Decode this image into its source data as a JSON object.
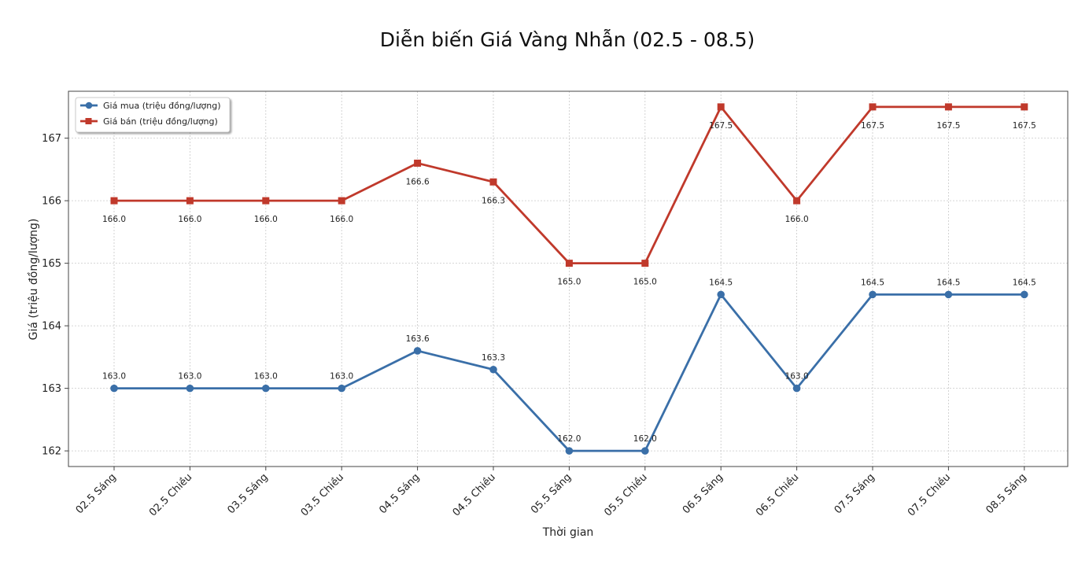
{
  "chart_data": {
    "type": "line",
    "title": "Diễn biến Giá Vàng Nhẫn (02.5 - 08.5)",
    "xlabel": "Thời gian",
    "ylabel": "Giá (triệu đồng/lượng)",
    "categories": [
      "02.5 Sáng",
      "02.5 Chiều",
      "03.5 Sáng",
      "03.5 Chiều",
      "04.5 Sáng",
      "04.5 Chiều",
      "05.5 Sáng",
      "05.5 Chiều",
      "06.5 Sáng",
      "06.5 Chiều",
      "07.5 Sáng",
      "07.5 Chiều",
      "08.5 Sáng"
    ],
    "ylim": [
      161.75,
      167.75
    ],
    "yticks": [
      162,
      163,
      164,
      165,
      166,
      167
    ],
    "grid": true,
    "legend_position": "top-left",
    "series": [
      {
        "name": "Giá mua (triệu đồng/lượng)",
        "color": "#3a6fa8",
        "marker": "circle",
        "label_position": "above",
        "values": [
          163.0,
          163.0,
          163.0,
          163.0,
          163.6,
          163.3,
          162.0,
          162.0,
          164.5,
          163.0,
          164.5,
          164.5,
          164.5
        ],
        "labels": [
          "163.0",
          "163.0",
          "163.0",
          "163.0",
          "163.6",
          "163.3",
          "162.0",
          "162.0",
          "164.5",
          "163.0",
          "164.5",
          "164.5",
          "164.5"
        ]
      },
      {
        "name": "Giá bán (triệu đồng/lượng)",
        "color": "#c0392b",
        "marker": "square",
        "label_position": "below",
        "values": [
          166.0,
          166.0,
          166.0,
          166.0,
          166.6,
          166.3,
          165.0,
          165.0,
          167.5,
          166.0,
          167.5,
          167.5,
          167.5
        ],
        "labels": [
          "166.0",
          "166.0",
          "166.0",
          "166.0",
          "166.6",
          "166.3",
          "165.0",
          "165.0",
          "167.5",
          "166.0",
          "167.5",
          "167.5",
          "167.5"
        ]
      }
    ]
  }
}
